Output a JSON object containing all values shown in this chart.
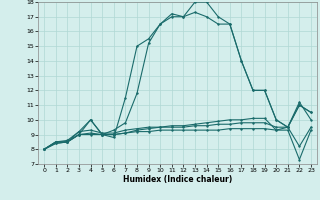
{
  "xlabel": "Humidex (Indice chaleur)",
  "xlim": [
    -0.5,
    23.5
  ],
  "ylim": [
    7,
    18
  ],
  "yticks": [
    7,
    8,
    9,
    10,
    11,
    12,
    13,
    14,
    15,
    16,
    17,
    18
  ],
  "xticks": [
    0,
    1,
    2,
    3,
    4,
    5,
    6,
    7,
    8,
    9,
    10,
    11,
    12,
    13,
    14,
    15,
    16,
    17,
    18,
    19,
    20,
    21,
    22,
    23
  ],
  "bg_color": "#d4eeec",
  "grid_color": "#b0d8d4",
  "line_color": "#1a6b6b",
  "curve1_x": [
    0,
    1,
    2,
    3,
    4,
    5,
    6,
    7,
    8,
    9,
    10,
    11,
    12,
    13,
    14,
    15,
    16,
    17,
    18,
    19,
    20,
    21,
    22,
    23
  ],
  "curve1_y": [
    8.0,
    8.5,
    8.5,
    9.0,
    10.0,
    9.0,
    8.8,
    11.5,
    15.0,
    15.5,
    16.5,
    17.0,
    17.0,
    18.0,
    18.0,
    17.0,
    16.5,
    14.0,
    12.0,
    12.0,
    10.0,
    9.5,
    11.0,
    10.5
  ],
  "curve2_x": [
    0,
    1,
    2,
    3,
    4,
    5,
    6,
    7,
    8,
    9,
    10,
    11,
    12,
    13,
    14,
    15,
    16,
    17,
    18,
    19,
    20,
    21,
    22,
    23
  ],
  "curve2_y": [
    8.0,
    8.5,
    8.5,
    9.2,
    10.0,
    9.0,
    9.3,
    9.8,
    11.8,
    15.2,
    16.5,
    17.2,
    17.0,
    17.3,
    17.0,
    16.5,
    16.5,
    14.0,
    12.0,
    12.0,
    10.0,
    9.5,
    11.0,
    10.5
  ],
  "flat1_x": [
    0,
    1,
    2,
    3,
    4,
    5,
    6,
    7,
    8,
    9,
    10,
    11,
    12,
    13,
    14,
    15,
    16,
    17,
    18,
    19,
    20,
    21,
    22,
    23
  ],
  "flat1_y": [
    8.0,
    8.4,
    8.5,
    9.0,
    9.0,
    9.0,
    9.0,
    9.1,
    9.2,
    9.2,
    9.3,
    9.3,
    9.3,
    9.3,
    9.3,
    9.3,
    9.4,
    9.4,
    9.4,
    9.4,
    9.3,
    9.3,
    7.3,
    9.3
  ],
  "flat2_x": [
    0,
    1,
    2,
    3,
    4,
    5,
    6,
    7,
    8,
    9,
    10,
    11,
    12,
    13,
    14,
    15,
    16,
    17,
    18,
    19,
    20,
    21,
    22,
    23
  ],
  "flat2_y": [
    8.0,
    8.5,
    8.6,
    9.2,
    9.3,
    9.1,
    9.1,
    9.3,
    9.4,
    9.5,
    9.5,
    9.5,
    9.5,
    9.6,
    9.6,
    9.7,
    9.7,
    9.8,
    9.8,
    9.8,
    9.5,
    9.5,
    8.2,
    9.5
  ],
  "flat3_x": [
    0,
    1,
    2,
    3,
    4,
    5,
    6,
    7,
    8,
    9,
    10,
    11,
    12,
    13,
    14,
    15,
    16,
    17,
    18,
    19,
    20,
    21,
    22,
    23
  ],
  "flat3_y": [
    8.0,
    8.4,
    8.5,
    9.0,
    9.1,
    9.0,
    9.0,
    9.1,
    9.3,
    9.4,
    9.5,
    9.6,
    9.6,
    9.7,
    9.8,
    9.9,
    10.0,
    10.0,
    10.1,
    10.1,
    9.3,
    9.5,
    11.2,
    10.0
  ],
  "marker_size": 1.8,
  "lw": 0.8
}
